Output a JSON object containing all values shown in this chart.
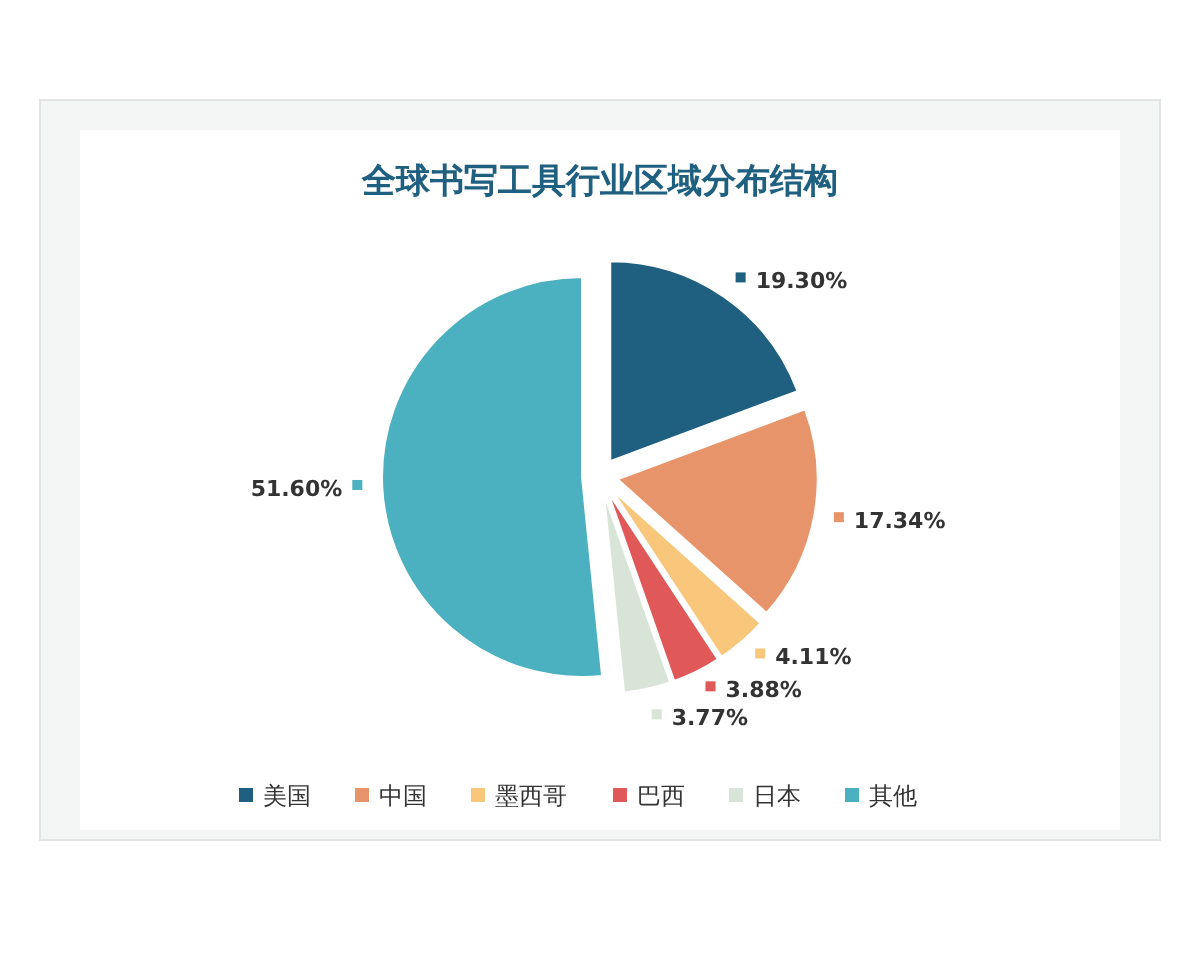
{
  "chart_data": {
    "type": "pie",
    "title": "全球书写工具行业区域分布结构",
    "categories": [
      "美国",
      "中国",
      "墨西哥",
      "巴西",
      "日本",
      "其他"
    ],
    "values": [
      19.3,
      17.34,
      4.11,
      3.88,
      3.77,
      51.6
    ],
    "value_labels": [
      "19.30%",
      "17.34%",
      "4.11%",
      "3.88%",
      "3.77%",
      "51.60%"
    ],
    "colors": [
      "#1f5f80",
      "#e8946a",
      "#f8c77c",
      "#e05858",
      "#d8e4d8",
      "#4bb0bf"
    ],
    "legend": "bottom"
  }
}
